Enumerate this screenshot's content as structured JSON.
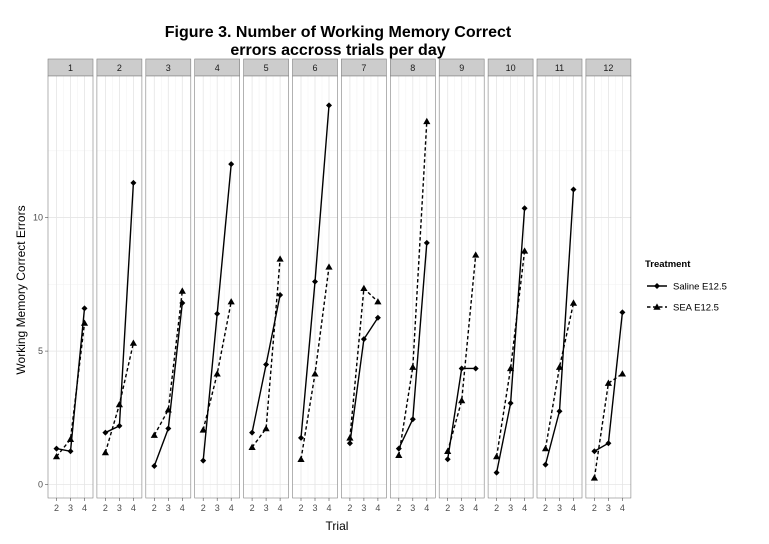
{
  "chart_data": {
    "type": "line",
    "title": "Figure 3. Number of Working Memory Correct",
    "title_line2": "errors accross trials per day",
    "xlabel": "Trial",
    "ylabel": "Working Memory Correct Errors",
    "x_ticks": [
      "2",
      "3",
      "4"
    ],
    "y_ticks": [
      0,
      5,
      10
    ],
    "ylim": [
      -0.5,
      15.3
    ],
    "grid": true,
    "legend_position": "right",
    "legend_title": "Treatment",
    "panels": [
      "1",
      "2",
      "3",
      "4",
      "5",
      "6",
      "7",
      "8",
      "9",
      "10",
      "11",
      "12"
    ],
    "x": [
      2,
      3,
      4
    ],
    "series": [
      {
        "name": "Saline E12.5",
        "line_style": "solid",
        "marker": "diamond",
        "values": [
          [
            1.35,
            1.25,
            6.6
          ],
          [
            1.95,
            2.2,
            11.3
          ],
          [
            0.7,
            2.1,
            6.8
          ],
          [
            0.9,
            6.4,
            12.0
          ],
          [
            1.95,
            4.5,
            7.1
          ],
          [
            1.75,
            7.6,
            14.2
          ],
          [
            1.55,
            5.45,
            6.25
          ],
          [
            1.35,
            2.45,
            9.05
          ],
          [
            0.95,
            4.35,
            4.35
          ],
          [
            0.45,
            3.05,
            10.35
          ],
          [
            0.75,
            2.75,
            11.05
          ],
          [
            1.25,
            1.55,
            6.45
          ]
        ]
      },
      {
        "name": "SEA E12.5",
        "line_style": "dashed",
        "marker": "triangle",
        "values": [
          [
            1.05,
            1.7,
            6.05
          ],
          [
            1.2,
            3.0,
            5.3
          ],
          [
            1.85,
            2.8,
            7.25
          ],
          [
            2.05,
            4.15,
            6.85
          ],
          [
            1.4,
            2.1,
            8.45
          ],
          [
            0.95,
            4.15,
            8.15
          ],
          [
            1.75,
            7.35,
            6.85
          ],
          [
            1.1,
            4.4,
            13.6
          ],
          [
            1.25,
            3.15,
            8.6
          ],
          [
            1.05,
            4.35,
            8.75
          ],
          [
            1.35,
            4.4,
            6.8
          ],
          [
            0.25,
            3.8,
            4.15
          ]
        ]
      }
    ],
    "colors": {
      "panel_bg": "#ffffff",
      "panel_border": "#808080",
      "strip_bg": "#cccccc",
      "grid_major": "#e5e5e5",
      "grid_minor": "#f3f3f3",
      "series": "#000000"
    }
  }
}
